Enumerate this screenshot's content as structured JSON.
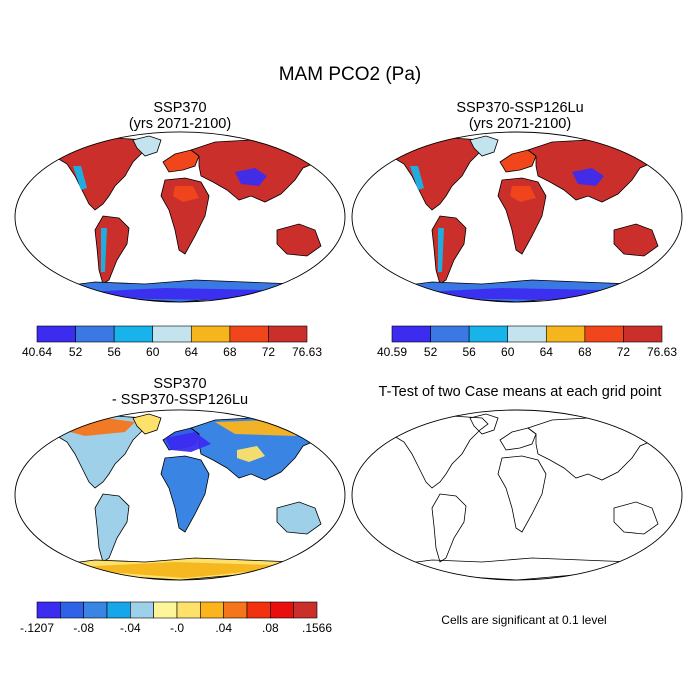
{
  "figure": {
    "title": "MAM PCO2 (Pa)",
    "note": "Cells are significant at 0.1 level"
  },
  "panels": [
    {
      "id": "ssp370",
      "title_lines": [
        "SSP370",
        "(yrs 2071-2100)"
      ],
      "fill": "high",
      "colorbar": {
        "labels": [
          "40.64",
          "52",
          "56",
          "60",
          "64",
          "68",
          "72",
          "76.63"
        ],
        "colors": [
          "#3b2cf0",
          "#3a78e4",
          "#17b3ea",
          "#c3e3ef",
          "#f5b51c",
          "#f1461b",
          "#cb2f2c"
        ]
      }
    },
    {
      "id": "ssp370-ssp126lu",
      "title_lines": [
        "SSP370-SSP126Lu",
        "(yrs 2071-2100)"
      ],
      "fill": "high",
      "colorbar": {
        "labels": [
          "40.59",
          "52",
          "56",
          "60",
          "64",
          "68",
          "72",
          "76.63"
        ],
        "colors": [
          "#3b2cf0",
          "#3a78e4",
          "#17b3ea",
          "#c3e3ef",
          "#f5b51c",
          "#f1461b",
          "#cb2f2c"
        ]
      }
    },
    {
      "id": "difference",
      "title_lines": [
        "SSP370",
        "- SSP370-SSP126Lu"
      ],
      "fill": "diff",
      "colorbar": {
        "labels": [
          "-.1207",
          "-.08",
          "-.04",
          "-.0",
          ".04",
          ".08",
          ".1566"
        ],
        "colors": [
          "#3b2cf0",
          "#2f62e6",
          "#3a85e4",
          "#18a6ea",
          "#9fd0ea",
          "#fdf59a",
          "#fde16a",
          "#fbb41c",
          "#f4751a",
          "#f2310f",
          "#e7100f",
          "#cb2f2c"
        ]
      }
    },
    {
      "id": "ttest",
      "title_lines": [
        "T-Test of two Case means at each grid point"
      ],
      "fill": "none"
    }
  ]
}
